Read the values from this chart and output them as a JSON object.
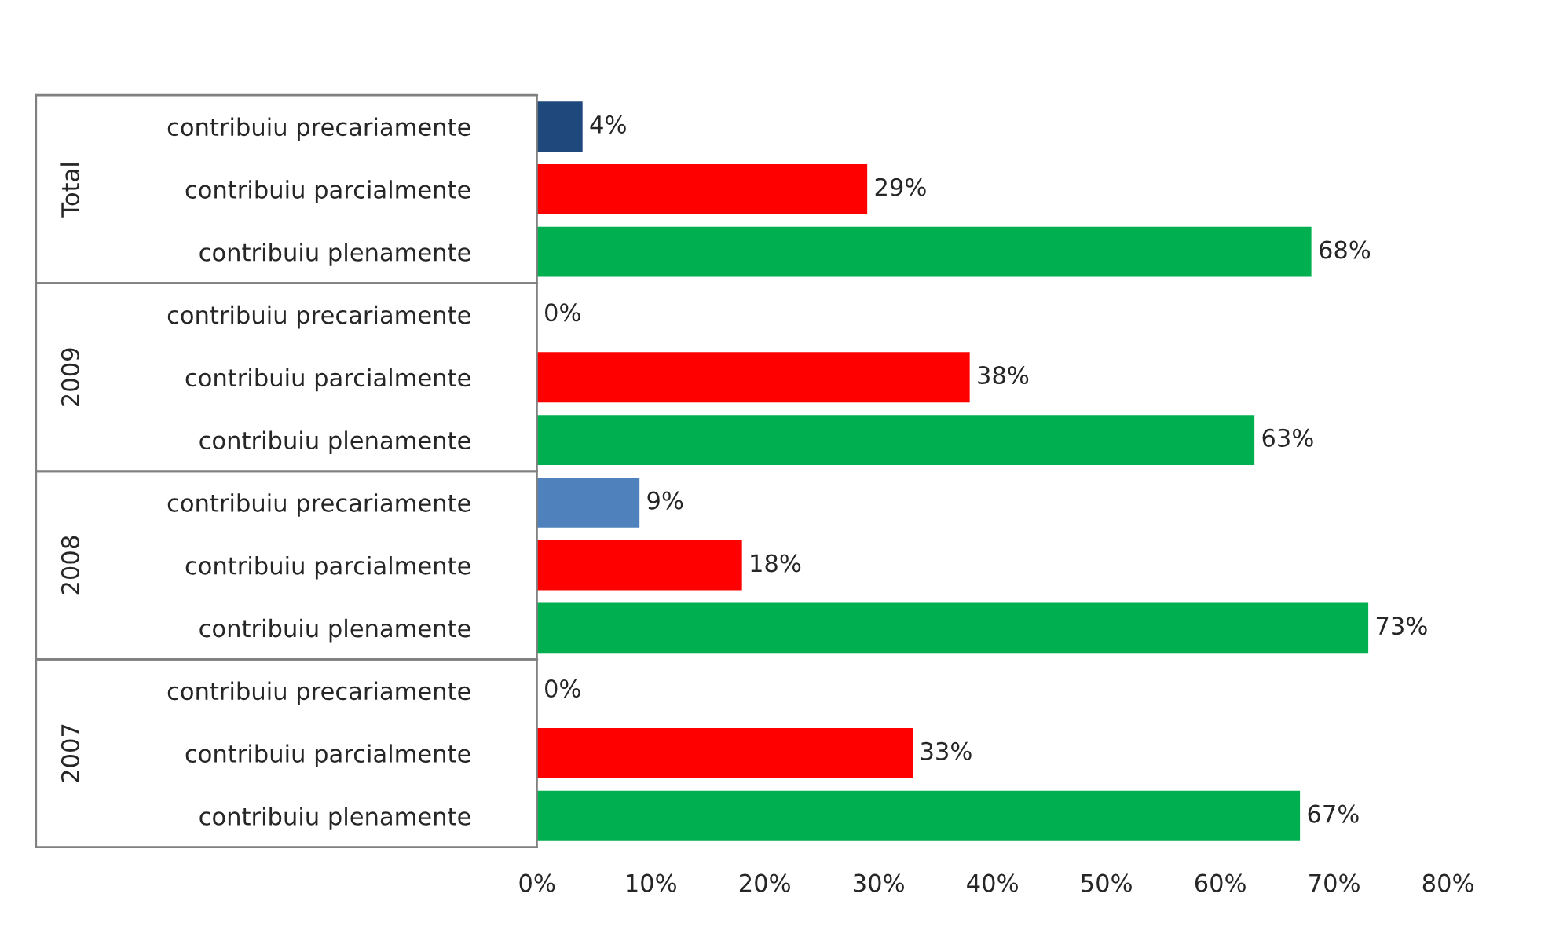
{
  "chart_data": {
    "type": "bar",
    "orientation": "horizontal",
    "categories": [
      "contribuiu precariamente",
      "contribuiu parcialmente",
      "contribuiu plenamente",
      "contribuiu precariamente",
      "contribuiu parcialmente",
      "contribuiu plenamente",
      "contribuiu precariamente",
      "contribuiu parcialmente",
      "contribuiu plenamente",
      "contribuiu precariamente",
      "contribuiu parcialmente",
      "contribuiu plenamente"
    ],
    "values": [
      4,
      29,
      68,
      0,
      38,
      63,
      9,
      18,
      73,
      0,
      33,
      67
    ],
    "colors": [
      "#1f497d",
      "#ff0000",
      "#00b050",
      "#2e5f8f",
      "#ff0000",
      "#00b050",
      "#4f81bd",
      "#ff0000",
      "#00b050",
      "#1f3864",
      "#ff0000",
      "#00b050"
    ],
    "value_labels": [
      "4%",
      "29%",
      "68%",
      "0%",
      "38%",
      "63%",
      "9%",
      "18%",
      "73%",
      "0%",
      "33%",
      "67%"
    ],
    "annotations": [
      "Total",
      "2009",
      "2008",
      "2007"
    ],
    "xlim": [
      0,
      80
    ],
    "xticks": [
      {
        "value": 0,
        "label": "0%"
      },
      {
        "value": 10,
        "label": "10%"
      },
      {
        "value": 20,
        "label": "20%"
      },
      {
        "value": 30,
        "label": "30%"
      },
      {
        "value": 40,
        "label": "40%"
      },
      {
        "value": 50,
        "label": "50%"
      },
      {
        "value": 60,
        "label": "60%"
      },
      {
        "value": 70,
        "label": "70%"
      },
      {
        "value": 80,
        "label": "80%"
      }
    ],
    "grid": false,
    "legend": false
  }
}
